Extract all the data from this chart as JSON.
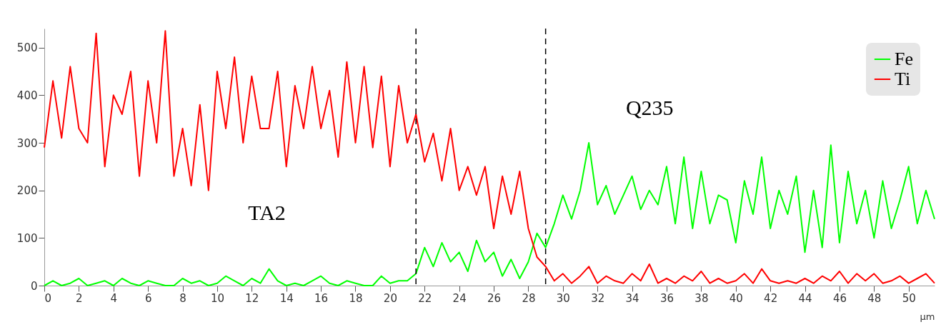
{
  "chart_data": {
    "type": "line",
    "xlabel": "μm",
    "x": [
      0,
      0.5,
      1,
      1.5,
      2,
      2.5,
      3,
      3.5,
      4,
      4.5,
      5,
      5.5,
      6,
      6.5,
      7,
      7.5,
      8,
      8.5,
      9,
      9.5,
      10,
      10.5,
      11,
      11.5,
      12,
      12.5,
      13,
      13.5,
      14,
      14.5,
      15,
      15.5,
      16,
      16.5,
      17,
      17.5,
      18,
      18.5,
      19,
      19.5,
      20,
      20.5,
      21,
      21.5,
      22,
      22.5,
      23,
      23.5,
      24,
      24.5,
      25,
      25.5,
      26,
      26.5,
      27,
      27.5,
      28,
      28.5,
      29,
      29.5,
      30,
      30.5,
      31,
      31.5,
      32,
      32.5,
      33,
      33.5,
      34,
      34.5,
      35,
      35.5,
      36,
      36.5,
      37,
      37.5,
      38,
      38.5,
      39,
      39.5,
      40,
      40.5,
      41,
      41.5,
      42,
      42.5,
      43,
      43.5,
      44,
      44.5,
      45,
      45.5,
      46,
      46.5,
      47,
      47.5,
      48,
      48.5,
      49,
      49.5,
      50,
      50.5,
      51,
      51.5
    ],
    "series": [
      {
        "name": "Fe",
        "color": "#00ff00",
        "values": [
          0,
          10,
          0,
          5,
          15,
          0,
          5,
          10,
          0,
          15,
          5,
          0,
          10,
          5,
          0,
          0,
          15,
          5,
          10,
          0,
          5,
          20,
          10,
          0,
          15,
          5,
          35,
          10,
          0,
          5,
          0,
          10,
          20,
          5,
          0,
          10,
          5,
          0,
          0,
          20,
          5,
          10,
          10,
          25,
          80,
          40,
          90,
          50,
          70,
          30,
          95,
          50,
          70,
          20,
          55,
          15,
          50,
          110,
          80,
          130,
          190,
          140,
          200,
          300,
          170,
          210,
          150,
          190,
          230,
          160,
          200,
          170,
          250,
          130,
          270,
          120,
          240,
          130,
          190,
          180,
          90,
          220,
          150,
          270,
          120,
          200,
          150,
          230,
          70,
          200,
          80,
          295,
          90,
          240,
          130,
          200,
          100,
          220,
          120,
          180,
          250,
          130,
          200,
          140
        ]
      },
      {
        "name": "Ti",
        "color": "#ff0000",
        "values": [
          290,
          430,
          310,
          460,
          330,
          300,
          530,
          250,
          400,
          360,
          450,
          230,
          430,
          300,
          535,
          230,
          330,
          210,
          380,
          200,
          450,
          330,
          480,
          300,
          440,
          330,
          330,
          450,
          250,
          420,
          330,
          460,
          330,
          410,
          270,
          470,
          300,
          460,
          290,
          440,
          250,
          420,
          300,
          360,
          260,
          320,
          220,
          330,
          200,
          250,
          190,
          250,
          120,
          230,
          150,
          240,
          120,
          60,
          40,
          10,
          25,
          5,
          20,
          40,
          5,
          20,
          10,
          5,
          25,
          10,
          45,
          5,
          15,
          5,
          20,
          10,
          30,
          5,
          15,
          5,
          10,
          25,
          5,
          35,
          10,
          5,
          10,
          5,
          15,
          5,
          20,
          10,
          30,
          5,
          25,
          10,
          25,
          5,
          10,
          20,
          5,
          15,
          25,
          5
        ]
      }
    ],
    "xlim": [
      0,
      51.5
    ],
    "xticks": [
      0,
      2,
      4,
      6,
      8,
      10,
      12,
      14,
      16,
      18,
      20,
      22,
      24,
      26,
      28,
      30,
      32,
      34,
      36,
      38,
      40,
      42,
      44,
      46,
      48,
      50
    ],
    "ylim": [
      0,
      540
    ],
    "yticks": [
      0,
      100,
      200,
      300,
      400,
      500
    ],
    "ref_lines": [
      {
        "axis": "x",
        "value": 21.5,
        "color": "#000000",
        "line_style": "dashed"
      },
      {
        "axis": "x",
        "value": 29,
        "color": "#000000",
        "line_style": "dashed"
      }
    ],
    "annotations": [
      "TA2",
      "Q235"
    ],
    "legend": "top right",
    "grid": false,
    "marker": "none",
    "line_style": "solid"
  }
}
